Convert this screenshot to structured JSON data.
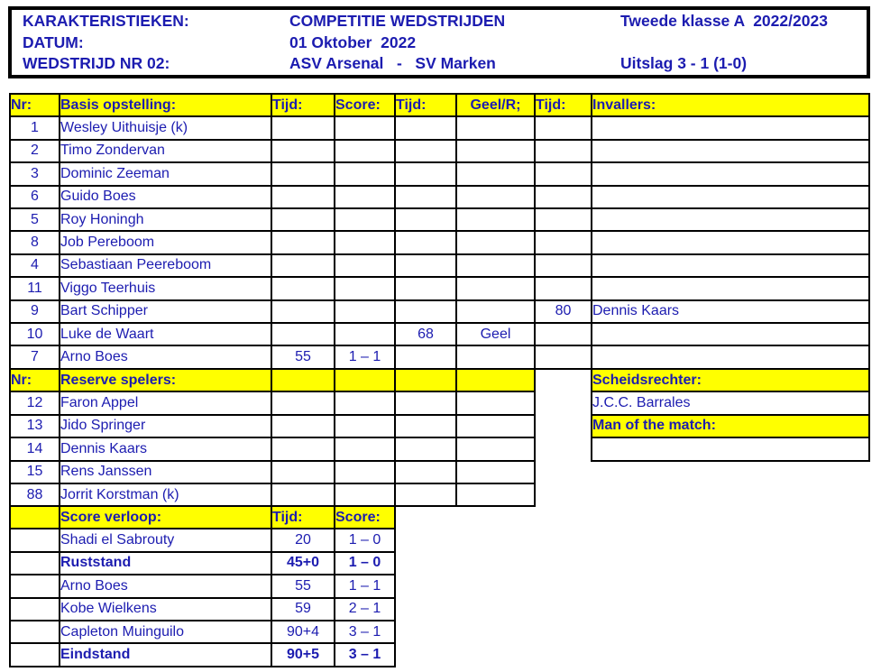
{
  "colors": {
    "text_blue": "#1c1cb0",
    "highlight_yellow": "#ffff00",
    "border_black": "#000000"
  },
  "header": {
    "rows": [
      {
        "label": "KARAKTERISTIEKEN:",
        "value": "COMPETITIE WEDSTRIJDEN",
        "right": "Tweede klasse A  2022/2023"
      },
      {
        "label": "DATUM:",
        "value": "01 Oktober  2022",
        "right": ""
      },
      {
        "label": "WEDSTRIJD NR 02:",
        "value": "ASV Arsenal   -   SV Marken",
        "right": "Uitslag 3 - 1 (1-0)"
      }
    ]
  },
  "tables": {
    "main": {
      "rows": [
        {
          "cells": [
            "Nr:",
            "Basis opstelling:",
            "Tijd:",
            "Score:",
            "Tijd:",
            "Geel/R;",
            "Tijd:",
            "Invallers:"
          ],
          "yellow": true,
          "bold": true
        },
        {
          "cells": [
            "1",
            "Wesley Uithuisje (k)",
            "",
            "",
            "",
            "",
            "",
            ""
          ]
        },
        {
          "cells": [
            "2",
            "Timo Zondervan",
            "",
            "",
            "",
            "",
            "",
            ""
          ]
        },
        {
          "cells": [
            "3",
            "Dominic Zeeman",
            "",
            "",
            "",
            "",
            "",
            ""
          ]
        },
        {
          "cells": [
            "6",
            "Guido Boes",
            "",
            "",
            "",
            "",
            "",
            ""
          ]
        },
        {
          "cells": [
            "5",
            "Roy Honingh",
            "",
            "",
            "",
            "",
            "",
            ""
          ]
        },
        {
          "cells": [
            "8",
            "Job Pereboom",
            "",
            "",
            "",
            "",
            "",
            ""
          ]
        },
        {
          "cells": [
            "4",
            "Sebastiaan Peereboom",
            "",
            "",
            "",
            "",
            "",
            ""
          ]
        },
        {
          "cells": [
            "11",
            "Viggo Teerhuis",
            "",
            "",
            "",
            "",
            "",
            ""
          ]
        },
        {
          "cells": [
            "9",
            "Bart Schipper",
            "",
            "",
            "",
            "",
            "80",
            "Dennis Kaars"
          ]
        },
        {
          "cells": [
            "10",
            "Luke de Waart",
            "",
            "",
            "68",
            "Geel",
            "",
            ""
          ]
        },
        {
          "cells": [
            "7",
            "Arno Boes",
            "55",
            "1 – 1",
            "",
            "",
            "",
            ""
          ]
        }
      ]
    },
    "reserve": {
      "rows": [
        {
          "cells": [
            "Nr:",
            "Reserve spelers:",
            "",
            "",
            "",
            ""
          ],
          "yellow": true,
          "bold": true
        },
        {
          "cells": [
            "12",
            "Faron Appel",
            "",
            "",
            "",
            ""
          ]
        },
        {
          "cells": [
            "13",
            "Jido Springer",
            "",
            "",
            "",
            ""
          ]
        },
        {
          "cells": [
            "14",
            "Dennis Kaars",
            "",
            "",
            "",
            ""
          ]
        },
        {
          "cells": [
            "15",
            "Rens Janssen",
            "",
            "",
            "",
            ""
          ]
        },
        {
          "cells": [
            "88",
            "Jorrit Korstman (k)",
            "",
            "",
            "",
            ""
          ]
        }
      ]
    },
    "officials": {
      "rows": [
        {
          "cells": [
            "Scheidsrechter:"
          ],
          "yellow": true,
          "bold": true
        },
        {
          "cells": [
            "J.C.C. Barrales"
          ]
        },
        {
          "cells": [
            "Man of the match:"
          ],
          "yellow": true,
          "bold": true
        },
        {
          "cells": [
            ""
          ]
        }
      ]
    },
    "score": {
      "rows": [
        {
          "cells": [
            "",
            "Score verloop:",
            "Tijd:",
            "Score:"
          ],
          "yellow": true,
          "bold": true
        },
        {
          "cells": [
            "",
            "Shadi el Sabrouty",
            "20",
            "1 – 0"
          ]
        },
        {
          "cells": [
            "",
            "Ruststand",
            "45+0",
            "1 – 0"
          ],
          "bold": true
        },
        {
          "cells": [
            "",
            "Arno Boes",
            "55",
            "1 – 1"
          ]
        },
        {
          "cells": [
            "",
            "Kobe Wielkens",
            "59",
            "2 – 1"
          ]
        },
        {
          "cells": [
            "",
            "Capleton Muinguilo",
            "90+4",
            "3 – 1"
          ]
        },
        {
          "cells": [
            "",
            "Eindstand",
            "90+5",
            "3 – 1"
          ],
          "bold": true
        }
      ]
    }
  }
}
